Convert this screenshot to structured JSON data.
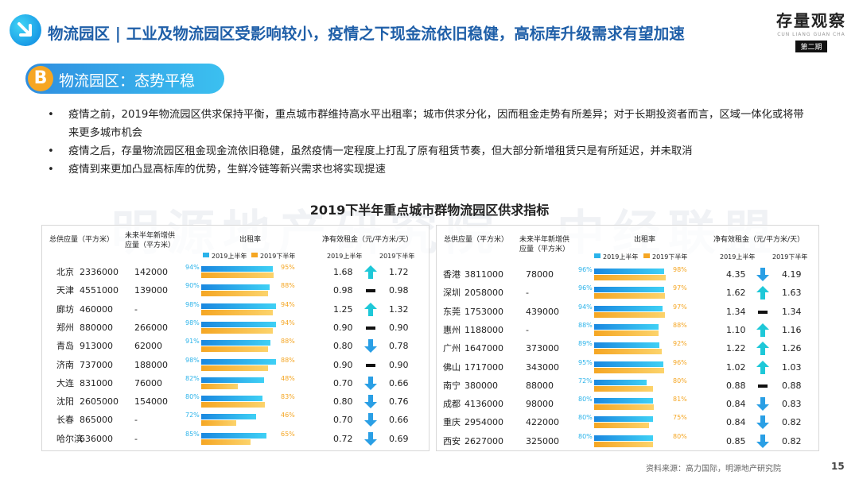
{
  "header": {
    "title": "物流园区 | 工业及物流园区受影响较小，疫情之下现金流依旧稳健，高标库升级需求有望加速",
    "brand_name": "存量观察",
    "brand_sub": "CUN LIANG GUAN CHA",
    "brand_issue": "第二期"
  },
  "section": {
    "letter": "B",
    "title": "物流园区：态势平稳"
  },
  "bullets": [
    "疫情之前，2019年物流园区供求保持平衡，重点城市群维持高水平出租率；城市供求分化，因而租金走势有所差异；对于长期投资者而言，区域一体化或将带来更多城市机会",
    "疫情之后，存量物流园区租金现金流依旧稳健，虽然疫情一定程度上打乱了原有租赁节奏，但大部分新增租赁只是有所延迟，并未取消",
    "疫情到来更加凸显高标库的优势，生鲜冷链等新兴需求也将实现提速"
  ],
  "watermark": {
    "left": "明源地产研究院",
    "right": "中经联盟"
  },
  "table": {
    "title": "2019下半年重点城市群物流园区供求指标",
    "headers": {
      "supply": "总供应量（平方米）",
      "new_supply_1": "未来半年新增供",
      "new_supply_2": "应量（平方米）",
      "occupancy": "出租率",
      "rent": "净有效租金（元/平方米/天）",
      "h1": "2019上半年",
      "h2": "2019下半年"
    },
    "colors": {
      "h1": "#2bb3ea",
      "h2": "#f5a623",
      "up": "#1ec8d8",
      "down": "#2a9fe5"
    },
    "left_rows": [
      {
        "city": "北京",
        "supply": "2336000",
        "new": "142000",
        "occ1": "94%",
        "occ2": "95%",
        "o1": 94,
        "o2": 95,
        "rent1": "1.68",
        "rent2": "1.72",
        "trend": "up"
      },
      {
        "city": "天津",
        "supply": "4551000",
        "new": "139000",
        "occ1": "90%",
        "occ2": "88%",
        "o1": 90,
        "o2": 88,
        "rent1": "0.98",
        "rent2": "0.98",
        "trend": "flat"
      },
      {
        "city": "廊坊",
        "supply": "460000",
        "new": "-",
        "occ1": "98%",
        "occ2": "94%",
        "o1": 98,
        "o2": 94,
        "rent1": "1.25",
        "rent2": "1.32",
        "trend": "up"
      },
      {
        "city": "郑州",
        "supply": "880000",
        "new": "266000",
        "occ1": "98%",
        "occ2": "94%",
        "o1": 98,
        "o2": 94,
        "rent1": "0.90",
        "rent2": "0.90",
        "trend": "flat"
      },
      {
        "city": "青岛",
        "supply": "913000",
        "new": "62000",
        "occ1": "91%",
        "occ2": "88%",
        "o1": 91,
        "o2": 88,
        "rent1": "0.80",
        "rent2": "0.78",
        "trend": "down"
      },
      {
        "city": "济南",
        "supply": "737000",
        "new": "188000",
        "occ1": "98%",
        "occ2": "88%",
        "o1": 98,
        "o2": 88,
        "rent1": "0.90",
        "rent2": "0.90",
        "trend": "flat"
      },
      {
        "city": "大连",
        "supply": "831000",
        "new": "76000",
        "occ1": "82%",
        "occ2": "48%",
        "o1": 82,
        "o2": 48,
        "rent1": "0.70",
        "rent2": "0.66",
        "trend": "down"
      },
      {
        "city": "沈阳",
        "supply": "2605000",
        "new": "154000",
        "occ1": "80%",
        "occ2": "83%",
        "o1": 80,
        "o2": 83,
        "rent1": "0.80",
        "rent2": "0.76",
        "trend": "down"
      },
      {
        "city": "长春",
        "supply": "865000",
        "new": "-",
        "occ1": "72%",
        "occ2": "46%",
        "o1": 72,
        "o2": 46,
        "rent1": "0.70",
        "rent2": "0.66",
        "trend": "down"
      },
      {
        "city": "哈尔滨",
        "supply": "636000",
        "new": "-",
        "occ1": "85%",
        "occ2": "65%",
        "o1": 85,
        "o2": 65,
        "rent1": "0.72",
        "rent2": "0.69",
        "trend": "down"
      }
    ],
    "right_rows": [
      {
        "city": "香港",
        "supply": "3811000",
        "new": "78000",
        "occ1": "96%",
        "occ2": "98%",
        "o1": 96,
        "o2": 98,
        "rent1": "4.35",
        "rent2": "4.19",
        "trend": "down"
      },
      {
        "city": "深圳",
        "supply": "2058000",
        "new": "-",
        "occ1": "96%",
        "occ2": "97%",
        "o1": 96,
        "o2": 97,
        "rent1": "1.62",
        "rent2": "1.63",
        "trend": "up"
      },
      {
        "city": "东莞",
        "supply": "1753000",
        "new": "439000",
        "occ1": "94%",
        "occ2": "97%",
        "o1": 94,
        "o2": 97,
        "rent1": "1.34",
        "rent2": "1.34",
        "trend": "flat"
      },
      {
        "city": "惠州",
        "supply": "1188000",
        "new": "-",
        "occ1": "88%",
        "occ2": "88%",
        "o1": 88,
        "o2": 88,
        "rent1": "1.10",
        "rent2": "1.16",
        "trend": "up"
      },
      {
        "city": "广州",
        "supply": "1647000",
        "new": "373000",
        "occ1": "89%",
        "occ2": "92%",
        "o1": 89,
        "o2": 92,
        "rent1": "1.22",
        "rent2": "1.26",
        "trend": "up"
      },
      {
        "city": "佛山",
        "supply": "1717000",
        "new": "343000",
        "occ1": "95%",
        "occ2": "96%",
        "o1": 95,
        "o2": 96,
        "rent1": "1.02",
        "rent2": "1.03",
        "trend": "up"
      },
      {
        "city": "南宁",
        "supply": "380000",
        "new": "88000",
        "occ1": "72%",
        "occ2": "80%",
        "o1": 72,
        "o2": 80,
        "rent1": "0.88",
        "rent2": "0.88",
        "trend": "flat"
      },
      {
        "city": "成都",
        "supply": "4136000",
        "new": "98000",
        "occ1": "80%",
        "occ2": "81%",
        "o1": 80,
        "o2": 81,
        "rent1": "0.84",
        "rent2": "0.83",
        "trend": "down"
      },
      {
        "city": "重庆",
        "supply": "2954000",
        "new": "422000",
        "occ1": "80%",
        "occ2": "75%",
        "o1": 80,
        "o2": 75,
        "rent1": "0.84",
        "rent2": "0.82",
        "trend": "down"
      },
      {
        "city": "西安",
        "supply": "2627000",
        "new": "325000",
        "occ1": "80%",
        "occ2": "80%",
        "o1": 80,
        "o2": 80,
        "rent1": "0.85",
        "rent2": "0.82",
        "trend": "down"
      }
    ]
  },
  "footer": {
    "source": "资料来源：高力国际，明源地产研究院",
    "page": "15"
  }
}
